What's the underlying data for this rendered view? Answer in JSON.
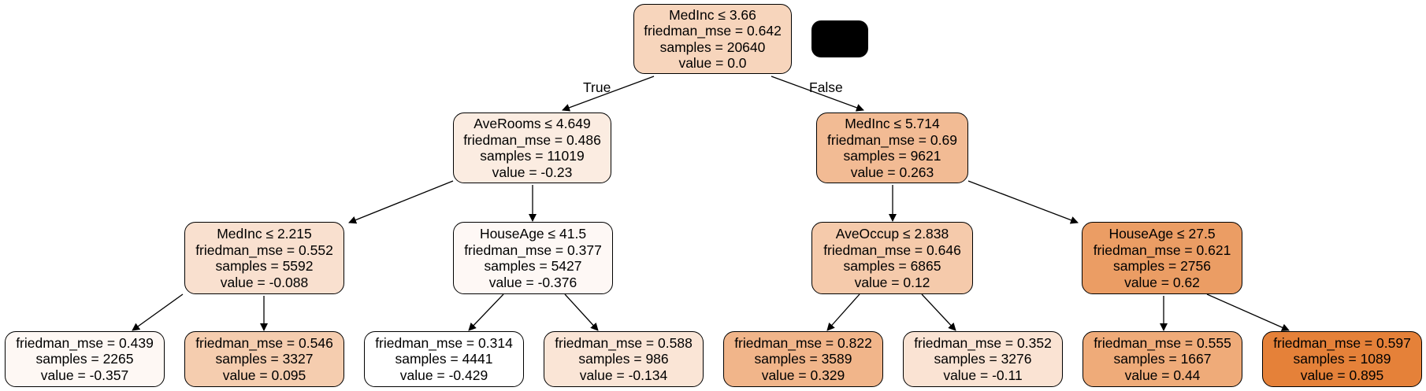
{
  "tree": {
    "edge_labels": {
      "true": "True",
      "false": "False"
    },
    "nodes": [
      {
        "id": "root",
        "lines": [
          "MedInc ≤ 3.66",
          "friedman_mse = 0.642",
          "samples = 20640",
          "value = 0.0"
        ],
        "fill": "#f7d5bc"
      },
      {
        "id": "l",
        "lines": [
          "AveRooms ≤ 4.649",
          "friedman_mse = 0.486",
          "samples = 11019",
          "value = -0.23"
        ],
        "fill": "#fbece1"
      },
      {
        "id": "r",
        "lines": [
          "MedInc ≤ 5.714",
          "friedman_mse = 0.69",
          "samples = 9621",
          "value = 0.263"
        ],
        "fill": "#f2bb94"
      },
      {
        "id": "ll",
        "lines": [
          "MedInc ≤ 2.215",
          "friedman_mse = 0.552",
          "samples = 5592",
          "value = -0.088"
        ],
        "fill": "#f9e0cf"
      },
      {
        "id": "lr",
        "lines": [
          "HouseAge ≤ 41.5",
          "friedman_mse = 0.377",
          "samples = 5427",
          "value = -0.376"
        ],
        "fill": "#fef8f5"
      },
      {
        "id": "rl",
        "lines": [
          "AveOccup ≤ 2.838",
          "friedman_mse = 0.646",
          "samples = 6865",
          "value = 0.12"
        ],
        "fill": "#f5caab"
      },
      {
        "id": "rr",
        "lines": [
          "HouseAge ≤ 27.5",
          "friedman_mse = 0.621",
          "samples = 2756",
          "value = 0.62"
        ],
        "fill": "#eb9d64"
      },
      {
        "id": "lll",
        "lines": [
          "friedman_mse = 0.439",
          "samples = 2265",
          "value = -0.357"
        ],
        "fill": "#fef8f4"
      },
      {
        "id": "llr",
        "lines": [
          "friedman_mse = 0.546",
          "samples = 3327",
          "value = 0.095"
        ],
        "fill": "#f5cdaf"
      },
      {
        "id": "lrl",
        "lines": [
          "friedman_mse = 0.314",
          "samples = 4441",
          "value = -0.429"
        ],
        "fill": "#ffffff"
      },
      {
        "id": "lrr",
        "lines": [
          "friedman_mse = 0.588",
          "samples = 986",
          "value = -0.134"
        ],
        "fill": "#fae5d6"
      },
      {
        "id": "rll",
        "lines": [
          "friedman_mse = 0.822",
          "samples = 3589",
          "value = 0.329"
        ],
        "fill": "#f1b58a"
      },
      {
        "id": "rlr",
        "lines": [
          "friedman_mse = 0.352",
          "samples = 3276",
          "value = -0.11"
        ],
        "fill": "#fae3d3"
      },
      {
        "id": "rrl",
        "lines": [
          "friedman_mse = 0.555",
          "samples = 1667",
          "value = 0.44"
        ],
        "fill": "#efab79"
      },
      {
        "id": "rrr",
        "lines": [
          "friedman_mse = 0.597",
          "samples = 1089",
          "value = 0.895"
        ],
        "fill": "#e58139"
      }
    ]
  }
}
